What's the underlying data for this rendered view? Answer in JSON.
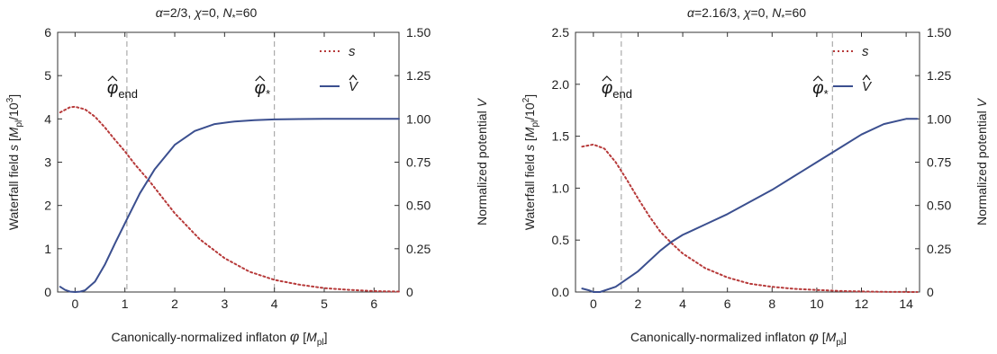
{
  "colors": {
    "s": "#b73a3a",
    "V": "#3b4f8f",
    "guide": "#9a9a9a",
    "frame": "#333333"
  },
  "chart_data": [
    {
      "type": "line",
      "title": "α=2/3, χ=0, N*=60",
      "title_parts": [
        "α=2/3, ",
        "χ",
        "=0, ",
        "N",
        "*",
        "=60"
      ],
      "xlabel_parts": [
        "Canonically-normalized inflaton ",
        "φ",
        " [",
        "M",
        "pl",
        "]"
      ],
      "ylabel_parts": [
        "Waterfall field ",
        "s",
        " [",
        "M",
        "pl",
        "/10",
        "3",
        "]"
      ],
      "y2label_parts": [
        "Normalized potential ",
        "V"
      ],
      "xlim": [
        -0.35,
        6.5
      ],
      "ylim": [
        0,
        6
      ],
      "y2lim": [
        0,
        1.5
      ],
      "xticks": [
        "0",
        "1",
        "2",
        "3",
        "4",
        "5",
        "6"
      ],
      "yticks": [
        "0",
        "1",
        "2",
        "3",
        "4",
        "5",
        "6"
      ],
      "y2ticks": [
        "0",
        "0.25",
        "0.50",
        "0.75",
        "1.00",
        "1.25",
        "1.50"
      ],
      "vlines": [
        1.04,
        4.0
      ],
      "annotations": [
        {
          "label": "φ",
          "sub": "end",
          "x": 1.04
        },
        {
          "label": "φ",
          "sub": "*",
          "x": 4.0
        }
      ],
      "legend": {
        "position": "top-right",
        "entries": [
          "s",
          "V"
        ]
      },
      "series": [
        {
          "name": "s",
          "axis": "left",
          "style": "dotted",
          "x": [
            -0.3,
            -0.1,
            0,
            0.2,
            0.4,
            0.6,
            0.8,
            1.0,
            1.2,
            1.5,
            2.0,
            2.5,
            3.0,
            3.5,
            4.0,
            4.5,
            5.0,
            5.5,
            6.0,
            6.5
          ],
          "y": [
            4.15,
            4.27,
            4.28,
            4.22,
            4.05,
            3.8,
            3.52,
            3.25,
            2.95,
            2.55,
            1.82,
            1.22,
            0.78,
            0.47,
            0.28,
            0.17,
            0.09,
            0.05,
            0.02,
            0.01
          ]
        },
        {
          "name": "V",
          "axis": "right",
          "style": "solid",
          "x": [
            -0.3,
            -0.2,
            -0.1,
            0,
            0.1,
            0.2,
            0.4,
            0.6,
            0.8,
            1.04,
            1.3,
            1.6,
            2.0,
            2.4,
            2.8,
            3.2,
            3.6,
            4.0,
            4.5,
            5.0,
            5.5,
            6.0,
            6.5
          ],
          "y": [
            0.03,
            0.012,
            0.002,
            0.0,
            0.002,
            0.01,
            0.06,
            0.16,
            0.28,
            0.42,
            0.57,
            0.71,
            0.85,
            0.93,
            0.97,
            0.985,
            0.993,
            0.997,
            0.999,
            1.0,
            1.0,
            1.0,
            1.0
          ]
        }
      ]
    },
    {
      "type": "line",
      "title": "α=2.16/3, χ=0, N*=60",
      "title_parts": [
        "α=2.16/3, ",
        "χ",
        "=0, ",
        "N",
        "*",
        "=60"
      ],
      "xlabel_parts": [
        "Canonically-normalized inflaton ",
        "φ",
        " [",
        "M",
        "pl",
        "]"
      ],
      "ylabel_parts": [
        "Waterfall field ",
        "s",
        " [",
        "M",
        "pl",
        "/10",
        "2",
        "]"
      ],
      "y2label_parts": [
        "Normalized potential ",
        "V"
      ],
      "xlim": [
        -0.8,
        14.6
      ],
      "ylim": [
        0,
        2.5
      ],
      "y2lim": [
        0,
        1.5
      ],
      "xticks": [
        "0",
        "2",
        "4",
        "6",
        "8",
        "10",
        "12",
        "14"
      ],
      "yticks": [
        "0.0",
        "0.5",
        "1.0",
        "1.5",
        "2.0",
        "2.5"
      ],
      "y2ticks": [
        "0",
        "0.25",
        "0.50",
        "0.75",
        "1.00",
        "1.25",
        "1.50"
      ],
      "vlines": [
        1.25,
        10.7
      ],
      "annotations": [
        {
          "label": "φ",
          "sub": "end",
          "x": 1.25
        },
        {
          "label": "φ",
          "sub": "*",
          "x": 10.7
        }
      ],
      "legend": {
        "position": "top-right",
        "entries": [
          "s",
          "V"
        ]
      },
      "series": [
        {
          "name": "s",
          "axis": "left",
          "style": "dotted",
          "x": [
            -0.5,
            0,
            0.5,
            1.0,
            1.5,
            2.0,
            2.5,
            3.0,
            3.5,
            4.0,
            5.0,
            6.0,
            7.0,
            8.0,
            9.0,
            10.0,
            11.0,
            12.0,
            13.0,
            14.5
          ],
          "y": [
            1.4,
            1.42,
            1.38,
            1.25,
            1.08,
            0.9,
            0.73,
            0.58,
            0.47,
            0.37,
            0.23,
            0.14,
            0.08,
            0.05,
            0.03,
            0.02,
            0.01,
            0.005,
            0.002,
            0.0
          ]
        },
        {
          "name": "V",
          "axis": "right",
          "style": "solid",
          "x": [
            -0.5,
            -0.2,
            0,
            0.3,
            1.0,
            2.0,
            3.0,
            3.5,
            4.0,
            5.0,
            6.0,
            7.0,
            8.0,
            9.0,
            10.0,
            11.0,
            12.0,
            13.0,
            14.0,
            14.5
          ],
          "y": [
            0.02,
            0.01,
            0.0,
            0.0,
            0.03,
            0.12,
            0.24,
            0.29,
            0.33,
            0.39,
            0.45,
            0.52,
            0.59,
            0.67,
            0.75,
            0.83,
            0.91,
            0.97,
            1.0,
            1.0
          ]
        }
      ]
    }
  ]
}
